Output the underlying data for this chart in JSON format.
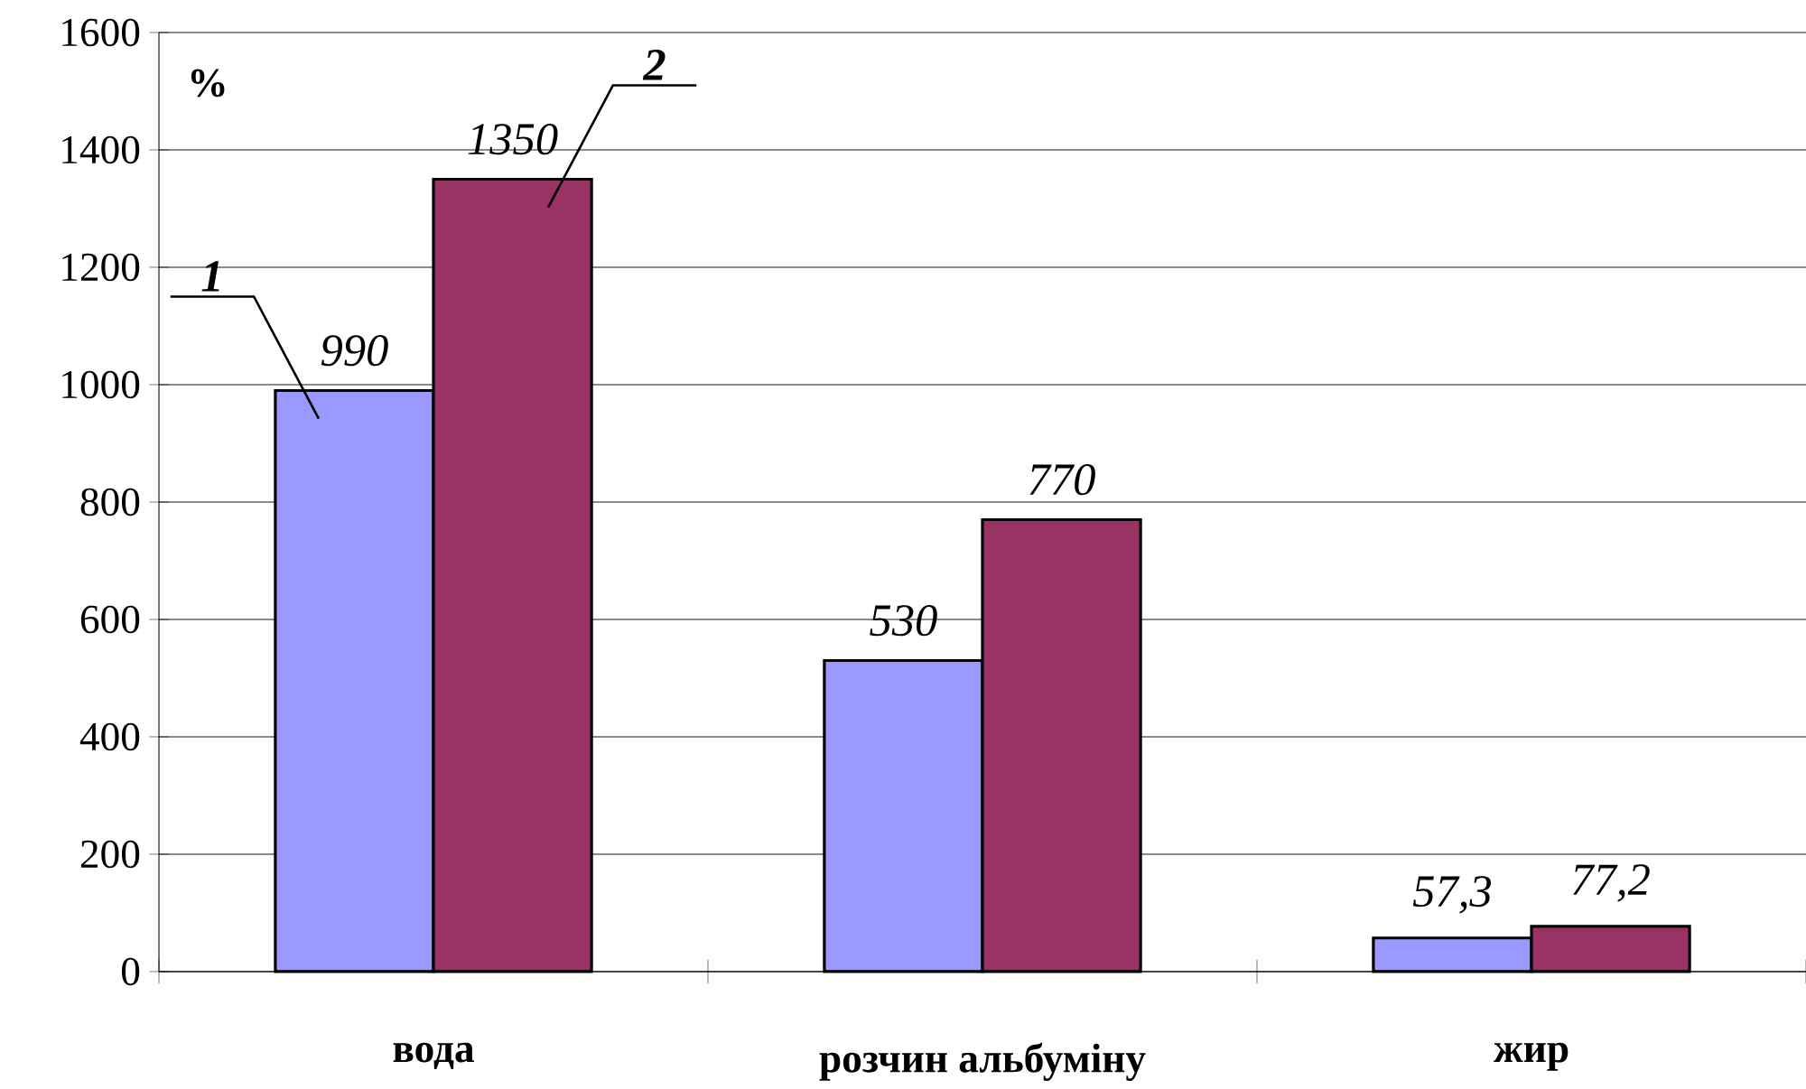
{
  "chart_data": {
    "type": "bar",
    "ylabel": "%",
    "categories": [
      "вода",
      "розчин альбуміну",
      "жир"
    ],
    "series": [
      {
        "name": "1",
        "color": "#9999ff",
        "values": [
          990,
          530,
          57.3
        ],
        "value_labels": [
          "990",
          "530",
          "57,3"
        ]
      },
      {
        "name": "2",
        "color": "#993366",
        "values": [
          1350,
          770,
          77.2
        ],
        "value_labels": [
          "1350",
          "770",
          "77,2"
        ]
      }
    ],
    "ylim": [
      0,
      1600
    ],
    "yticks": [
      0,
      200,
      400,
      600,
      800,
      1000,
      1200,
      1400,
      1600
    ],
    "grid": "y"
  }
}
